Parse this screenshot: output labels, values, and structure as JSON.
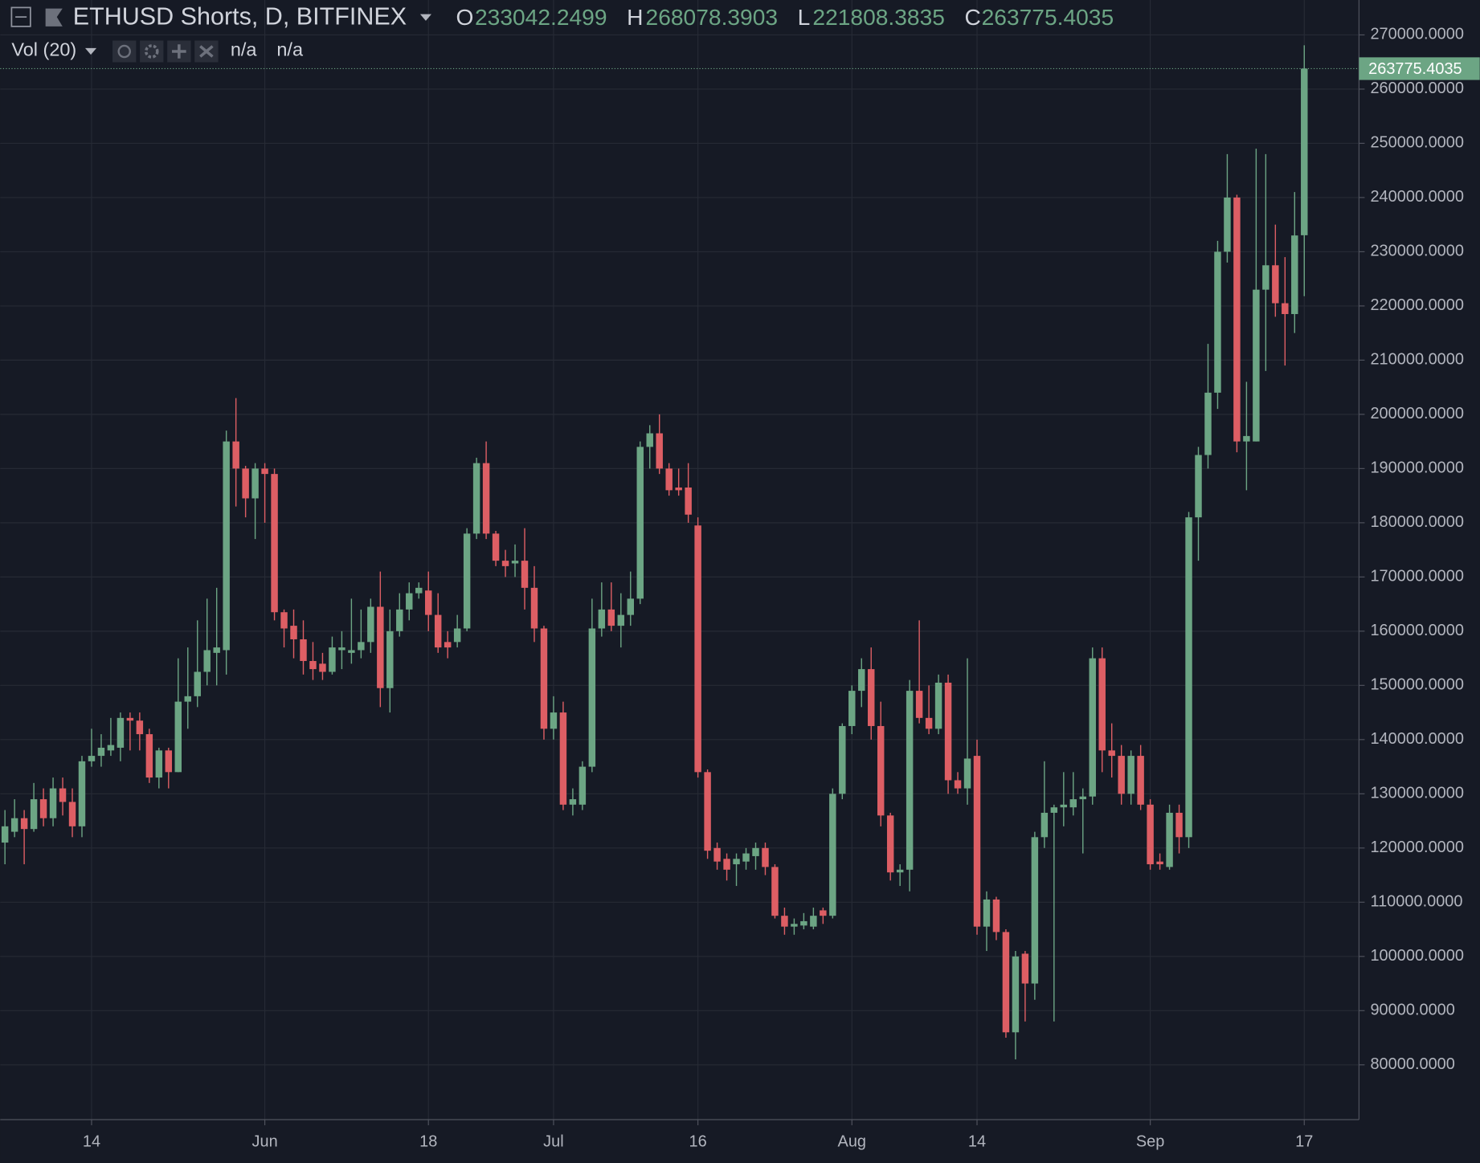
{
  "chart_data": {
    "type": "candlestick",
    "title": "ETHUSD Shorts, D, BITFINEX",
    "ohlc_labels": [
      "O",
      "H",
      "L",
      "C"
    ],
    "indicator": {
      "name": "Vol (20)",
      "values": [
        "n/a",
        "n/a"
      ]
    },
    "up_color": "#6ca584",
    "down_color": "#dd5e64",
    "grid": true,
    "categories": [
      null,
      null,
      null,
      null,
      null,
      null,
      null,
      null,
      null,
      "14",
      null,
      null,
      null,
      null,
      null,
      null,
      null,
      null,
      null,
      null,
      null,
      null,
      null,
      null,
      null,
      null,
      null,
      "Jun",
      null,
      null,
      null,
      null,
      null,
      null,
      null,
      null,
      null,
      null,
      null,
      null,
      null,
      null,
      null,
      null,
      "18",
      null,
      null,
      null,
      null,
      null,
      null,
      null,
      null,
      null,
      null,
      null,
      null,
      "Jul",
      null,
      null,
      null,
      null,
      null,
      null,
      null,
      null,
      null,
      null,
      null,
      null,
      null,
      null,
      "16",
      null,
      null,
      null,
      null,
      null,
      null,
      null,
      null,
      null,
      null,
      null,
      null,
      null,
      null,
      null,
      "Aug",
      null,
      null,
      null,
      null,
      null,
      null,
      null,
      null,
      null,
      null,
      null,
      null,
      "14",
      null,
      null,
      null,
      null,
      null,
      null,
      null,
      null,
      null,
      null,
      null,
      null,
      null,
      null,
      null,
      null,
      null,
      "Sep",
      null,
      null,
      null,
      null,
      null,
      null,
      null,
      null,
      null,
      null,
      null,
      null,
      null,
      null,
      null,
      "17"
    ],
    "open": [
      121000,
      123000,
      125500,
      123500,
      129000,
      125500,
      131000,
      128500,
      124000,
      136000,
      137000,
      138000,
      138500,
      144000,
      143500,
      141000,
      133000,
      138000,
      134000,
      147000,
      148000,
      152500,
      156000,
      156500,
      195000,
      190000,
      184500,
      190000,
      189000,
      163500,
      161000,
      158500,
      154500,
      154000,
      152500,
      156500,
      156000,
      156500,
      158000,
      164500,
      149500,
      160000,
      164000,
      167000,
      167500,
      163000,
      158000,
      158000,
      160500,
      178000,
      191000,
      178000,
      173000,
      172500,
      173000,
      168000,
      160500,
      142000,
      145000,
      128000,
      128000,
      135000,
      160500,
      164000,
      161000,
      163000,
      166000,
      194000,
      196500,
      190000,
      186500,
      186500,
      179500,
      134000,
      120000,
      118000,
      117000,
      117500,
      118500,
      120000,
      116500,
      107500,
      105500,
      105700,
      105500,
      108500,
      107500,
      130000,
      142500,
      149000,
      153000,
      142500,
      126000,
      115500,
      116000,
      149000,
      144000,
      142000,
      150500,
      132500,
      131000,
      137000,
      105500,
      110500,
      104500,
      86000,
      100500,
      95000,
      122000,
      126500,
      127500,
      127500,
      129000,
      129500,
      155000,
      138000,
      137000,
      130000,
      137000,
      128000,
      117500,
      116500,
      126500,
      122000,
      181000,
      192500,
      204000,
      230000,
      240000,
      195000,
      195000,
      223000,
      227500,
      220500,
      218500,
      233042.2499
    ],
    "high": [
      127000,
      129000,
      127000,
      132000,
      131000,
      133000,
      133000,
      131000,
      137000,
      142000,
      141000,
      144000,
      145000,
      145000,
      145000,
      142000,
      138500,
      138500,
      155000,
      157000,
      162000,
      166000,
      168000,
      197000,
      203000,
      190500,
      191000,
      191000,
      190000,
      164000,
      164000,
      162000,
      158000,
      156000,
      159000,
      160000,
      166000,
      164000,
      166000,
      171000,
      164000,
      167000,
      169000,
      169000,
      171000,
      167000,
      160000,
      163000,
      179000,
      192000,
      195000,
      178500,
      175000,
      176000,
      179000,
      172000,
      161000,
      148000,
      147000,
      131000,
      136000,
      166000,
      169000,
      169000,
      167000,
      171000,
      195000,
      198000,
      200000,
      191000,
      190000,
      191000,
      181000,
      134500,
      121000,
      119000,
      119000,
      120000,
      121000,
      121000,
      117000,
      109000,
      107000,
      108000,
      109000,
      109000,
      131000,
      143000,
      150000,
      155000,
      157000,
      147000,
      126500,
      117000,
      151000,
      162000,
      150000,
      152000,
      152000,
      134000,
      155000,
      140000,
      112000,
      111000,
      105000,
      101000,
      101000,
      123000,
      136000,
      128000,
      134000,
      134000,
      131000,
      157000,
      157000,
      143000,
      139000,
      138000,
      139000,
      129000,
      119000,
      128000,
      128000,
      182000,
      194000,
      213000,
      232000,
      248000,
      240500,
      206000,
      249000,
      248000,
      235000,
      229000,
      241000,
      268078.3903
    ],
    "low": [
      117000,
      122000,
      117000,
      123000,
      124000,
      124000,
      126000,
      122000,
      122000,
      135000,
      135000,
      137000,
      136000,
      138000,
      138000,
      132000,
      131000,
      131000,
      134000,
      142000,
      146000,
      150000,
      150000,
      152000,
      183000,
      181000,
      177000,
      180000,
      162000,
      157000,
      155000,
      152000,
      151000,
      151000,
      152000,
      153000,
      154000,
      155000,
      156000,
      146000,
      145000,
      159000,
      162000,
      166000,
      160000,
      156000,
      155000,
      157000,
      160000,
      177000,
      177000,
      172000,
      170000,
      170000,
      164000,
      158000,
      140000,
      140000,
      127000,
      126000,
      127000,
      134000,
      159000,
      160000,
      157000,
      161000,
      165000,
      190000,
      189000,
      185000,
      185000,
      180000,
      133000,
      118000,
      116000,
      114000,
      113000,
      116000,
      116000,
      115000,
      107000,
      104000,
      104000,
      105000,
      105000,
      106000,
      107000,
      129000,
      141000,
      146000,
      140000,
      124000,
      114000,
      113000,
      112000,
      143000,
      141000,
      141000,
      130000,
      130000,
      128000,
      104000,
      101000,
      103000,
      85000,
      81000,
      88000,
      92000,
      120000,
      88000,
      124000,
      126000,
      119000,
      128000,
      134000,
      133000,
      128000,
      128000,
      127000,
      116000,
      116000,
      116000,
      119000,
      120000,
      173000,
      190000,
      201000,
      228000,
      193000,
      186000,
      195000,
      208000,
      218000,
      209000,
      215000,
      221808.3835
    ],
    "close": [
      124000,
      125500,
      123500,
      129000,
      125500,
      131000,
      128500,
      124000,
      136000,
      137000,
      138500,
      139000,
      144000,
      143500,
      141000,
      133000,
      138000,
      134000,
      147000,
      148000,
      152500,
      156500,
      157000,
      195000,
      190000,
      184500,
      190000,
      189000,
      163500,
      160500,
      158500,
      154500,
      153000,
      152500,
      157000,
      157000,
      156500,
      158000,
      164500,
      149500,
      160000,
      164000,
      167000,
      168000,
      163000,
      157000,
      157000,
      160500,
      178000,
      191000,
      178000,
      173000,
      172000,
      173000,
      168000,
      160500,
      142000,
      145000,
      128000,
      129000,
      135000,
      160500,
      164000,
      161000,
      163000,
      166000,
      194000,
      196500,
      190000,
      186000,
      186000,
      181500,
      134000,
      119500,
      117500,
      116000,
      118000,
      119000,
      120000,
      116500,
      107500,
      105500,
      106000,
      106500,
      107500,
      107500,
      130000,
      142500,
      149000,
      153000,
      142500,
      126000,
      115500,
      116000,
      149000,
      144000,
      142000,
      150500,
      132500,
      131000,
      136500,
      105500,
      110500,
      104500,
      86000,
      100000,
      95000,
      122000,
      126500,
      127500,
      128000,
      129000,
      129500,
      155000,
      138000,
      137000,
      130000,
      137000,
      128000,
      117000,
      117000,
      126500,
      122000,
      181000,
      192500,
      204000,
      230000,
      240000,
      195000,
      196000,
      223000,
      227500,
      220500,
      218500,
      233000,
      263775.4035
    ],
    "ylim": [
      69895,
      276438
    ],
    "yticks": [
      {
        "value": 80000,
        "label": "80000.0000"
      },
      {
        "value": 90000,
        "label": "90000.0000"
      },
      {
        "value": 100000,
        "label": "100000.0000"
      },
      {
        "value": 110000,
        "label": "110000.0000"
      },
      {
        "value": 120000,
        "label": "120000.0000"
      },
      {
        "value": 130000,
        "label": "130000.0000"
      },
      {
        "value": 140000,
        "label": "140000.0000"
      },
      {
        "value": 150000,
        "label": "150000.0000"
      },
      {
        "value": 160000,
        "label": "160000.0000"
      },
      {
        "value": 170000,
        "label": "170000.0000"
      },
      {
        "value": 180000,
        "label": "180000.0000"
      },
      {
        "value": 190000,
        "label": "190000.0000"
      },
      {
        "value": 200000,
        "label": "200000.0000"
      },
      {
        "value": 210000,
        "label": "210000.0000"
      },
      {
        "value": 220000,
        "label": "220000.0000"
      },
      {
        "value": 230000,
        "label": "230000.0000"
      },
      {
        "value": 240000,
        "label": "240000.0000"
      },
      {
        "value": 250000,
        "label": "250000.0000"
      },
      {
        "value": 260000,
        "label": "260000.0000"
      },
      {
        "value": 270000,
        "label": "270000.0000"
      }
    ]
  }
}
